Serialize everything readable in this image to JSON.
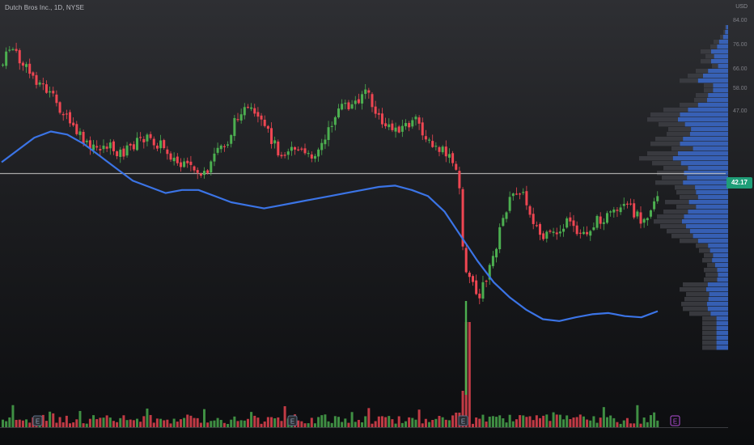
{
  "header": {
    "symbol_title": "Dutch Bros Inc., 1D, NYSE",
    "currency": "USD"
  },
  "price_axis": {
    "ticks": [
      "84.00",
      "76.00",
      "66.00",
      "58.00",
      "47.00",
      "42.17"
    ],
    "last_price": "42.17"
  },
  "colors": {
    "up": "#4caf50",
    "down": "#ef4652",
    "moving_average": "#3b74e6",
    "volume_profile_blue": "#3a67c4",
    "volume_profile_gray": "#3c3d42",
    "price_line": "#bfbfbf",
    "price_badge": "#1f9e78",
    "earnings_marker_purple": "#b14dd6"
  },
  "chart_data": {
    "type": "candlestick",
    "title": "Dutch Bros Inc., 1D, NYSE",
    "currency": "USD",
    "last_price": 42.17,
    "ylim": [
      20,
      86
    ],
    "y_ticks": [
      84,
      76,
      66,
      58,
      47
    ],
    "grid": false,
    "indicators": [
      "moving average",
      "volume",
      "volume profile"
    ],
    "moving_average": [
      62,
      64,
      66,
      67,
      66.5,
      65,
      63,
      61,
      59,
      58,
      57,
      57.5,
      57.5,
      56.5,
      55.5,
      55,
      54.5,
      55,
      55.5,
      56,
      56.5,
      57,
      57.5,
      58,
      58.2,
      57.5,
      56.5,
      54,
      50,
      46,
      42.5,
      40,
      38,
      36.5,
      36.2,
      36.8,
      37.3,
      37.5,
      37,
      36.8,
      37.8
    ],
    "moving_average_reading_points": 41,
    "earnings_markers": [
      {
        "label": "E",
        "style": "past"
      },
      {
        "label": "E",
        "style": "past"
      },
      {
        "label": "E",
        "style": "past"
      },
      {
        "label": "E",
        "style": "upcoming"
      }
    ]
  }
}
